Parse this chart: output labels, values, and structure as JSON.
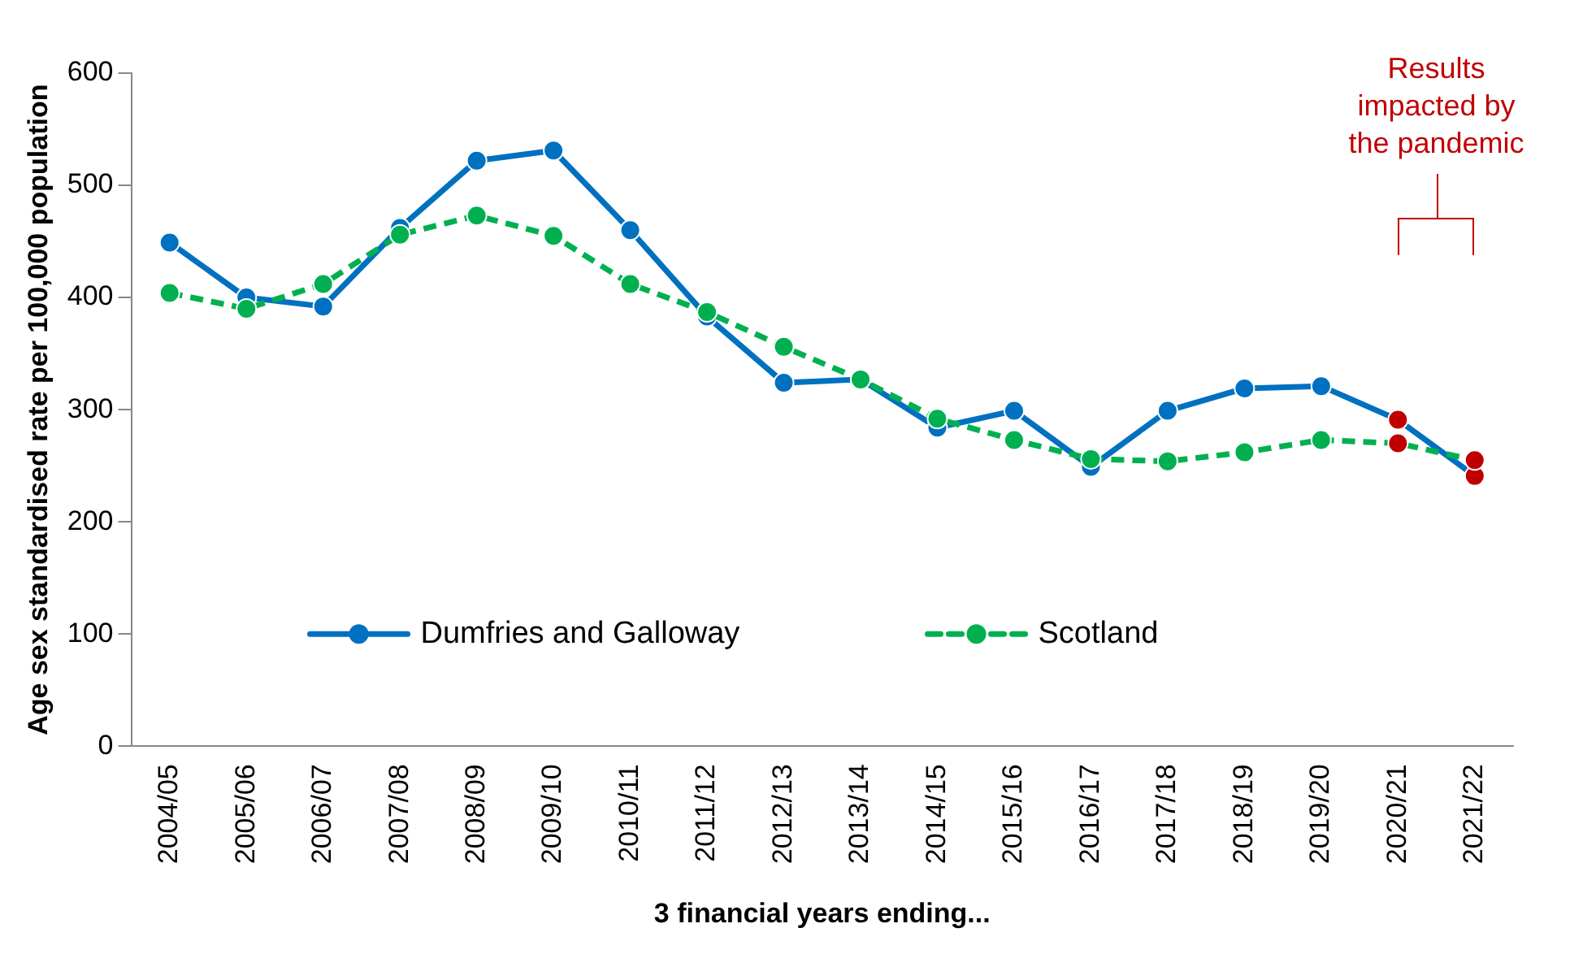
{
  "chart_data": {
    "type": "line",
    "xlabel": "3 financial years ending...",
    "ylabel": "Age sex standardised rate per 100,000 population",
    "categories": [
      "2004/05",
      "2005/06",
      "2006/07",
      "2007/08",
      "2008/09",
      "2009/10",
      "2010/11",
      "2011/12",
      "2012/13",
      "2013/14",
      "2014/15",
      "2015/16",
      "2016/17",
      "2017/18",
      "2018/19",
      "2019/20",
      "2020/21",
      "2021/22"
    ],
    "series": [
      {
        "name": "Dumfries and Galloway",
        "color": "#0070c0",
        "line_style": "solid",
        "values": [
          449,
          400,
          392,
          462,
          522,
          531,
          460,
          383,
          324,
          327,
          284,
          299,
          249,
          299,
          319,
          321,
          291,
          241
        ],
        "colors": [
          "#0070c0",
          "#0070c0",
          "#0070c0",
          "#0070c0",
          "#0070c0",
          "#0070c0",
          "#0070c0",
          "#0070c0",
          "#0070c0",
          "#0070c0",
          "#0070c0",
          "#0070c0",
          "#0070c0",
          "#0070c0",
          "#0070c0",
          "#0070c0",
          "#c00000",
          "#c00000"
        ]
      },
      {
        "name": "Scotland",
        "color": "#00b050",
        "line_style": "dashed",
        "values": [
          404,
          390,
          412,
          456,
          473,
          455,
          412,
          387,
          356,
          327,
          292,
          273,
          256,
          254,
          262,
          273,
          270,
          255
        ],
        "colors": [
          "#00b050",
          "#00b050",
          "#00b050",
          "#00b050",
          "#00b050",
          "#00b050",
          "#00b050",
          "#00b050",
          "#00b050",
          "#00b050",
          "#00b050",
          "#00b050",
          "#00b050",
          "#00b050",
          "#00b050",
          "#00b050",
          "#c00000",
          "#c00000"
        ]
      }
    ],
    "ylim": [
      0,
      600
    ],
    "yticks": [
      0,
      100,
      200,
      300,
      400,
      500,
      600
    ],
    "grid": false,
    "marker": "circle",
    "legend": "bottom",
    "annotations": [
      "Results\nimpacted by\nthe pandemic"
    ]
  }
}
